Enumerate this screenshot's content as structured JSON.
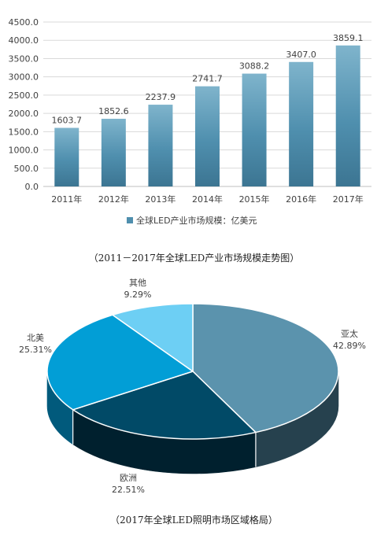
{
  "chart_data": [
    {
      "type": "bar",
      "categories": [
        "2011年",
        "2012年",
        "2013年",
        "2014年",
        "2015年",
        "2016年",
        "2017年"
      ],
      "series": [
        {
          "name": "全球LED产业市场规模：亿美元",
          "values": [
            1603.7,
            1852.6,
            2237.9,
            2741.7,
            3088.2,
            3407.0,
            3859.1
          ]
        }
      ],
      "value_labels": [
        "1603.7",
        "1852.6",
        "2237.9",
        "2741.7",
        "3088.2",
        "3407.0",
        "3859.1"
      ],
      "yticks": [
        "0.0",
        "500.0",
        "1000.0",
        "1500.0",
        "2000.0",
        "2500.0",
        "3000.0",
        "3500.0",
        "4000.0",
        "4500.0"
      ],
      "ylim": [
        0,
        4500
      ],
      "grid": true,
      "legend": "bottom",
      "bar_color": "#4f8fae",
      "caption": "（2011－2017年全球LED产业市场规模走势图）"
    },
    {
      "type": "pie",
      "style": "3d",
      "slices": [
        {
          "label": "亚太",
          "value": 42.89,
          "pct_label": "42.89%",
          "color": "#5b93ad",
          "side_color": "#26414e"
        },
        {
          "label": "欧洲",
          "value": 22.51,
          "pct_label": "22.51%",
          "color": "#014a67",
          "side_color": "#00202e"
        },
        {
          "label": "北美",
          "value": 25.31,
          "pct_label": "25.31%",
          "color": "#029ed6",
          "side_color": "#015a7c"
        },
        {
          "label": "其他",
          "value": 9.29,
          "pct_label": "9.29%",
          "color": "#6dcff4",
          "side_color": "#3a8aaa"
        }
      ],
      "caption": "（2017年全球LED照明市场区域格局）"
    }
  ]
}
